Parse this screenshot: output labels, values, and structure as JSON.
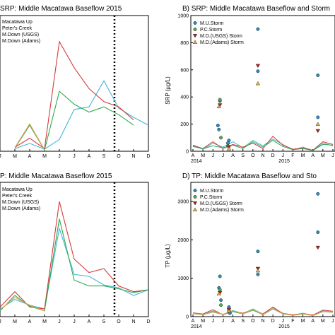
{
  "colors": {
    "macatawa_up": "#3fb6d9",
    "peters_creek": "#d43a3a",
    "m_down_usgs": "#2ea84a",
    "m_down_adams": "#e8a44a",
    "mu_storm": "#2b8fbf",
    "pc_storm": "#4ab04a",
    "md_usgs_storm": "#b22222",
    "md_adams_storm": "#e0b040"
  },
  "panels": {
    "A": {
      "title": "SRP: Middle Macatawa Baseflow 2015",
      "legend": [
        "Macatawa Up",
        "Peter's Creek",
        "M.Down (USGS)",
        "M.Down (Adams)"
      ]
    },
    "B": {
      "title": "B) SRP: Middle Macatawa Baseflow and Storm",
      "ylabel": "SRP (µg/L)",
      "legend": [
        "M.U.Storm",
        "P.C.Storm",
        "M.D.(USGS) Storm",
        "M.D.(Adams) Storm"
      ],
      "yticks": [
        "0",
        "200",
        "400",
        "600",
        "800",
        "1000"
      ],
      "xticks": [
        "A",
        "M",
        "J",
        "J",
        "A",
        "S",
        "O",
        "N",
        "D",
        "J",
        "F",
        "M",
        "A",
        "M",
        "J"
      ],
      "years": [
        "2014",
        "2015"
      ]
    },
    "C": {
      "title": "P: Middle Macatawa Baseflow 2015",
      "legend": [
        "Macatawa Up",
        "Peter's Creek",
        "M.Down (USGS)",
        "M.Down (Adams)"
      ]
    },
    "D": {
      "title": "D) TP: Middle Macatawa Baseflow and Sto",
      "ylabel": "TP (µg/L)",
      "legend": [
        "M.U.Storm",
        "P.C.Storm",
        "M.D.(USGS) Storm",
        "M.D.(Adams) Storm"
      ],
      "yticks": [
        "0",
        "1000",
        "2000",
        "3000"
      ],
      "xticks": [
        "A",
        "M",
        "J",
        "J",
        "A",
        "S",
        "O",
        "N",
        "D",
        "J",
        "F",
        "M",
        "A",
        "M",
        "J"
      ],
      "years": [
        "2014",
        "2015"
      ]
    }
  },
  "chart_data": [
    {
      "type": "line",
      "title": "SRP: Middle Macatawa Baseflow 2015",
      "categories": [
        "J",
        "M",
        "A",
        "M",
        "J",
        "J",
        "A",
        "S",
        "O",
        "N",
        "D"
      ],
      "series": [
        {
          "name": "Macatawa Up",
          "values": [
            null,
            10,
            30,
            8,
            45,
            160,
            170,
            270,
            165,
            130,
            100
          ]
        },
        {
          "name": "Peter's Creek",
          "values": [
            null,
            15,
            50,
            10,
            420,
            320,
            240,
            190,
            170,
            120,
            null
          ]
        },
        {
          "name": "M.Down (USGS)",
          "values": [
            null,
            12,
            100,
            5,
            230,
            180,
            150,
            170,
            140,
            100,
            null
          ]
        },
        {
          "name": "M.Down (Adams)",
          "values": [
            null,
            14,
            105,
            6,
            null,
            null,
            null,
            null,
            null,
            null,
            null
          ]
        }
      ]
    },
    {
      "type": "scatter",
      "title": "B) SRP: Middle Macatawa Baseflow and Storm",
      "ylabel": "SRP (µg/L)",
      "ylim": [
        0,
        1000
      ],
      "x_ticks": [
        "A",
        "M",
        "J",
        "J",
        "A",
        "S",
        "O",
        "N",
        "D",
        "J",
        "F",
        "M",
        "A",
        "M",
        "J"
      ],
      "series": [
        {
          "name": "M.U.Storm",
          "points": [
            [
              2.5,
              190
            ],
            [
              2.6,
              160
            ],
            [
              2.7,
              370
            ],
            [
              3.5,
              60
            ],
            [
              3.6,
              80
            ],
            [
              6.5,
              900
            ],
            [
              6.5,
              590
            ],
            [
              12.5,
              560
            ],
            [
              12.5,
              250
            ]
          ]
        },
        {
          "name": "P.C.Storm",
          "points": [
            [
              2.7,
              380
            ],
            [
              2.8,
              100
            ],
            [
              3.5,
              40
            ]
          ]
        },
        {
          "name": "M.D.(USGS) Storm",
          "points": [
            [
              2.7,
              340
            ],
            [
              3.6,
              30
            ],
            [
              6.5,
              630
            ],
            [
              12.5,
              150
            ]
          ]
        },
        {
          "name": "M.D.(Adams) Storm",
          "points": [
            [
              2.6,
              330
            ],
            [
              3.6,
              20
            ],
            [
              6.5,
              500
            ],
            [
              12.5,
              200
            ]
          ]
        }
      ],
      "baseflow_series": [
        {
          "name": "Macatawa Up",
          "values": [
            40,
            15,
            60,
            30,
            70,
            25,
            80,
            40,
            90,
            50,
            10,
            30,
            5,
            60,
            40
          ]
        },
        {
          "name": "Peter's Creek",
          "values": [
            45,
            20,
            70,
            20,
            50,
            30,
            60,
            20,
            110,
            45,
            15,
            25,
            8,
            70,
            50
          ]
        },
        {
          "name": "M.Down (USGS)",
          "values": [
            35,
            18,
            40,
            25,
            45,
            20,
            70,
            30,
            80,
            35,
            12,
            20,
            6,
            50,
            45
          ]
        }
      ]
    },
    {
      "type": "line",
      "title": "P: Middle Macatawa Baseflow 2015",
      "categories": [
        "J",
        "M",
        "A",
        "M",
        "J",
        "J",
        "A",
        "S",
        "O",
        "N",
        "D"
      ],
      "series": [
        {
          "name": "Macatawa Up",
          "values": [
            40,
            90,
            60,
            40,
            460,
            220,
            210,
            165,
            150,
            110,
            140
          ]
        },
        {
          "name": "Peter's Creek",
          "values": [
            50,
            130,
            50,
            40,
            600,
            300,
            230,
            250,
            160,
            130,
            140
          ]
        },
        {
          "name": "M.Down (USGS)",
          "values": [
            30,
            110,
            55,
            30,
            510,
            190,
            160,
            160,
            145,
            125,
            140
          ]
        },
        {
          "name": "M.Down (Adams)",
          "values": [
            35,
            100,
            60,
            30,
            null,
            null,
            null,
            null,
            null,
            null,
            null
          ]
        }
      ]
    },
    {
      "type": "scatter",
      "title": "D) TP: Middle Macatawa Baseflow and Sto",
      "ylabel": "TP (µg/L)",
      "ylim": [
        0,
        3500
      ],
      "x_ticks": [
        "A",
        "M",
        "J",
        "J",
        "A",
        "S",
        "O",
        "N",
        "D",
        "J",
        "F",
        "M",
        "A",
        "M",
        "J"
      ],
      "series": [
        {
          "name": "M.U.Storm",
          "points": [
            [
              2.6,
              750
            ],
            [
              2.7,
              1050
            ],
            [
              2.8,
              430
            ],
            [
              3.6,
              250
            ],
            [
              3.7,
              90
            ],
            [
              6.5,
              1700
            ],
            [
              6.5,
              1100
            ],
            [
              12.5,
              3200
            ],
            [
              12.5,
              2200
            ]
          ]
        },
        {
          "name": "P.C.Storm",
          "points": [
            [
              2.7,
              700
            ],
            [
              2.8,
              300
            ],
            [
              3.6,
              160
            ]
          ]
        },
        {
          "name": "M.D.(USGS) Storm",
          "points": [
            [
              2.7,
              620
            ],
            [
              3.6,
              180
            ],
            [
              6.5,
              1250
            ],
            [
              12.5,
              1800
            ]
          ]
        },
        {
          "name": "M.D.(Adams) Storm",
          "points": [
            [
              2.6,
              600
            ],
            [
              3.6,
              150
            ],
            [
              6.5,
              1200
            ]
          ]
        }
      ],
      "baseflow_series": [
        {
          "name": "Macatawa Up",
          "values": [
            90,
            60,
            150,
            60,
            160,
            80,
            200,
            60,
            220,
            90,
            40,
            90,
            30,
            150,
            120
          ]
        },
        {
          "name": "Peter's Creek",
          "values": [
            100,
            70,
            180,
            50,
            140,
            90,
            180,
            70,
            250,
            80,
            50,
            80,
            40,
            170,
            140
          ]
        },
        {
          "name": "M.Down (USGS)",
          "values": [
            80,
            50,
            120,
            55,
            130,
            70,
            170,
            50,
            200,
            70,
            35,
            70,
            25,
            130,
            110
          ]
        },
        {
          "name": "M.Down (Adams)",
          "values": [
            85,
            55,
            130,
            60,
            150,
            75,
            190,
            55,
            210,
            75,
            38,
            75,
            28,
            140,
            115
          ]
        }
      ]
    }
  ]
}
